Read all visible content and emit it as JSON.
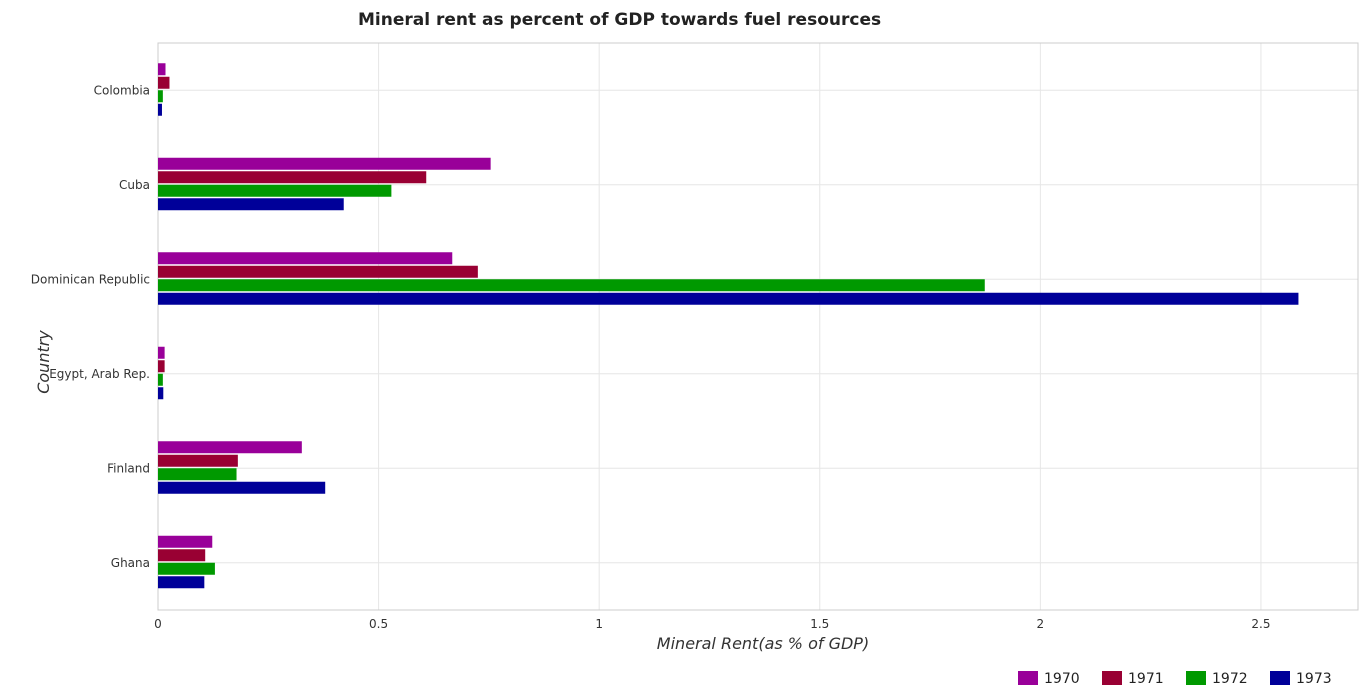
{
  "chart_data": {
    "type": "bar",
    "orientation": "horizontal",
    "title": "Mineral rent as percent of GDP towards fuel resources",
    "xlabel": "Mineral Rent(as % of GDP)",
    "ylabel": "Country",
    "categories": [
      "Colombia",
      "Cuba",
      "Dominican Republic",
      "Egypt, Arab Rep.",
      "Finland",
      "Ghana"
    ],
    "series": [
      {
        "name": "1970",
        "color": "#990099",
        "values": [
          0.017,
          0.754,
          0.667,
          0.015,
          0.326,
          0.123
        ]
      },
      {
        "name": "1971",
        "color": "#990033",
        "values": [
          0.026,
          0.608,
          0.725,
          0.015,
          0.181,
          0.107
        ]
      },
      {
        "name": "1972",
        "color": "#009900",
        "values": [
          0.011,
          0.529,
          1.874,
          0.011,
          0.178,
          0.129
        ]
      },
      {
        "name": "1973",
        "color": "#000099",
        "values": [
          0.009,
          0.421,
          2.585,
          0.012,
          0.379,
          0.105
        ]
      }
    ],
    "xlim": [
      0,
      2.72
    ],
    "xticks": [
      0,
      0.5,
      1,
      1.5,
      2,
      2.5
    ],
    "xtick_labels": [
      "0",
      "0.5",
      "1",
      "1.5",
      "2",
      "2.5"
    ],
    "grid": true,
    "legend_position": "bottom-right"
  }
}
